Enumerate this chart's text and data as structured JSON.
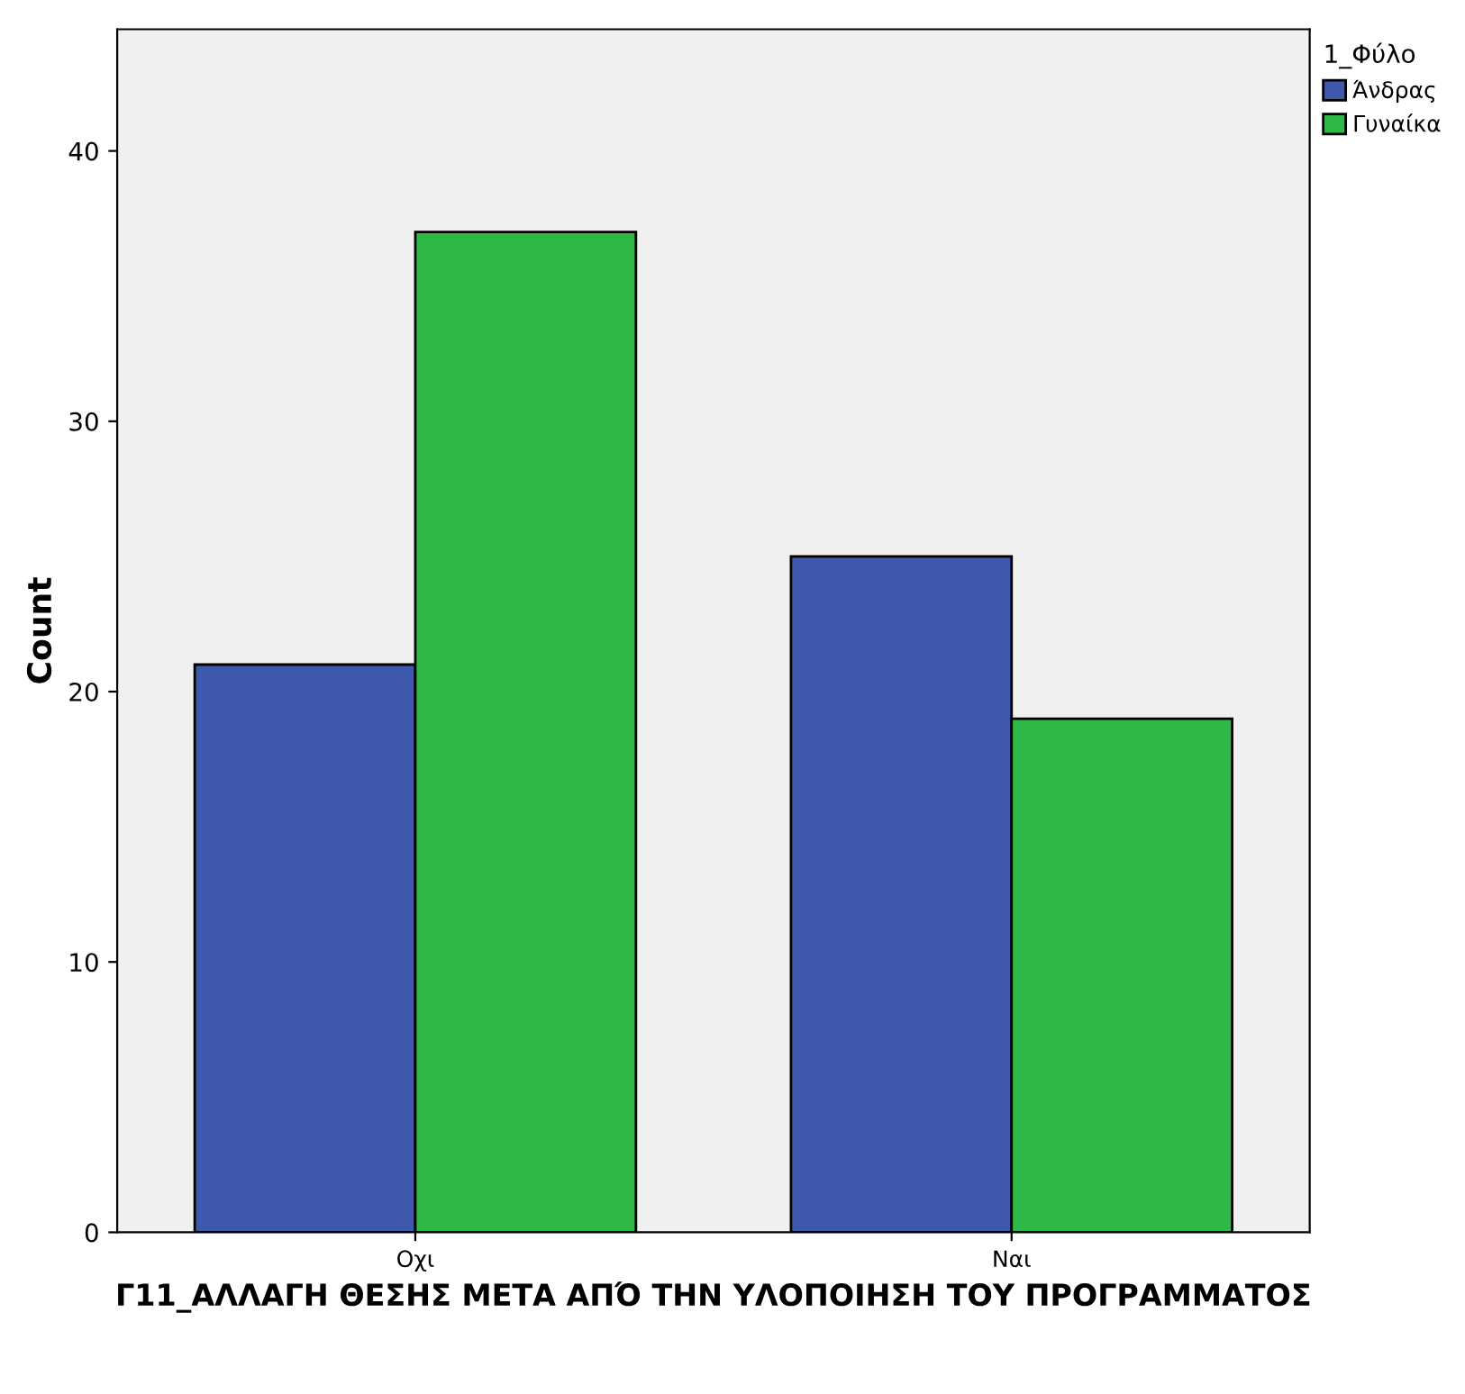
{
  "chart_data": {
    "type": "bar",
    "xlabel": "Γ11_ΑΛΛΑΓΗ ΘΕΣΗΣ ΜΕΤΑ ΑΠΌ ΤΗΝ ΥΛΟΠΟΙΗΣΗ ΤΟΥ ΠΡΟΓΡΑΜΜΑΤΟΣ",
    "ylabel": "Count",
    "categories": [
      "Οχι",
      "Ναι"
    ],
    "series": [
      {
        "name": "Άνδρας",
        "color": "#3e58ac",
        "values": [
          21,
          25
        ]
      },
      {
        "name": "Γυναίκα",
        "color": "#2eb848",
        "values": [
          37,
          19
        ]
      }
    ],
    "legend_title": "1_Φύλο",
    "legend": "top right",
    "ylim": [
      0,
      44.5
    ],
    "yticks": [
      0,
      10,
      20,
      30,
      40
    ],
    "grid": false
  }
}
